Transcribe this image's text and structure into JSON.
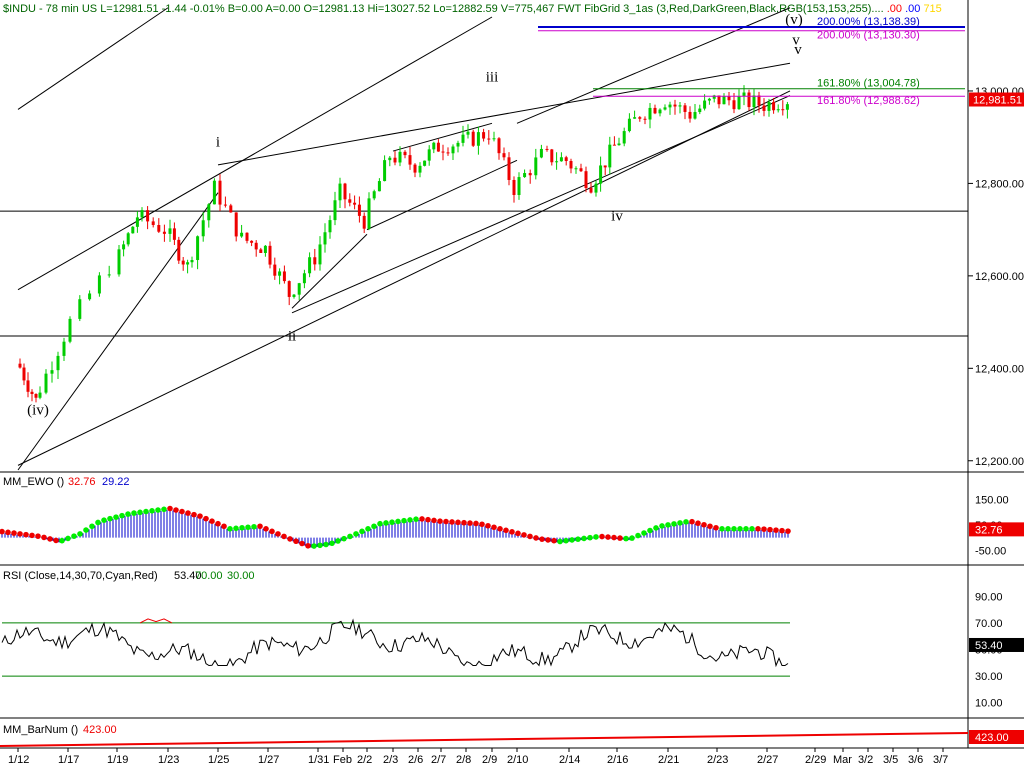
{
  "window": {
    "header_segments": [
      {
        "text": "$INDU - 78 min  US  L=12981.51  -1.44  -0.01%  B=0.00  A=0.00  O=12981.13  Hi=13027.52  Lo=12882.59  V=775,467   FWT FibGrid 3_1as (3,Red,DarkGreen,Black,RGB(153,153,255)....",
        "color": "#006400"
      },
      {
        "text": ".00",
        "color": "#ff0000"
      },
      {
        "text": ".00",
        "color": "#0000ff"
      },
      {
        "text": "715",
        "color": "#ffd700"
      }
    ]
  },
  "colors": {
    "up_candle": "#00cc00",
    "down_candle": "#ee0000",
    "ewo_histogram": "#0000cc",
    "ewo_dot_up": "#00ee00",
    "ewo_dot_down": "#ee0000",
    "rsi_line": "#000000",
    "rsi_bounds": "#008000",
    "fib_green": "#008000",
    "fib_magenta": "#cc00cc",
    "fib_blue": "#0000cc",
    "price_tag_bg": "#ee0000"
  },
  "price_panel": {
    "last_price_label": "12,981.51",
    "y_axis_ticks": [
      "13,000.00",
      "12,800.00",
      "12,600.00",
      "12,400.00",
      "12,200.00"
    ],
    "fib_labels": [
      {
        "text": "200.00% (13,138.39)",
        "color": "#0000cc"
      },
      {
        "text": "200.00% (13,130.30)",
        "color": "#cc00cc"
      },
      {
        "text": "161.80% (13,004.78)",
        "color": "#008000"
      },
      {
        "text": "161.80% (12,988.62)",
        "color": "#cc00cc"
      }
    ],
    "wave_labels": [
      "(iv)",
      "i",
      "ii",
      "iii",
      "iv",
      "v",
      "(v)",
      "v"
    ]
  },
  "ewo_panel": {
    "label": "MM_EWO ()",
    "value1": "32.76",
    "value2": "29.22",
    "y_axis_ticks": [
      "150.00",
      "50.00",
      "-50.00"
    ],
    "value_tag": "32.76"
  },
  "rsi_panel": {
    "label": "RSI (Close,14,30,70,Cyan,Red)",
    "value": "53.40",
    "upper": "70.00",
    "lower": "30.00",
    "y_axis_ticks": [
      "90.00",
      "70.00",
      "50.00",
      "30.00",
      "10.00"
    ],
    "value_tag": "53.40"
  },
  "barnum_panel": {
    "label": "MM_BarNum ()",
    "value": "423.00",
    "value_tag": "423.00"
  },
  "x_axis": {
    "labels": [
      "1/12",
      "1/17",
      "1/19",
      "1/23",
      "1/25",
      "1/27",
      "1/31",
      "Feb",
      "2/2",
      "2/3",
      "2/6",
      "2/7",
      "2/8",
      "2/9",
      "2/10",
      "2/14",
      "2/16",
      "2/21",
      "2/23",
      "2/27",
      "2/29",
      "Mar",
      "3/2",
      "3/5",
      "3/6",
      "3/7"
    ]
  },
  "chart_data": {
    "type": "candlestick",
    "symbol": "$INDU",
    "interval": "78 min",
    "bars": 423,
    "price_ylim": [
      12180,
      13160
    ],
    "price_path_approx": [
      {
        "date": "1/12",
        "close": 12420
      },
      {
        "date": "1/13",
        "close": 12330
      },
      {
        "date": "1/17",
        "close": 12470
      },
      {
        "date": "1/19",
        "close": 12620
      },
      {
        "date": "1/20",
        "close": 12730
      },
      {
        "date": "1/23",
        "close": 12700
      },
      {
        "date": "1/24",
        "close": 12620
      },
      {
        "date": "1/25",
        "close": 12790
      },
      {
        "date": "1/26",
        "close": 12680
      },
      {
        "date": "1/27",
        "close": 12660
      },
      {
        "date": "1/30",
        "close": 12560
      },
      {
        "date": "1/31",
        "close": 12640
      },
      {
        "date": "2/1",
        "close": 12780
      },
      {
        "date": "2/2",
        "close": 12720
      },
      {
        "date": "2/3",
        "close": 12860
      },
      {
        "date": "2/6",
        "close": 12840
      },
      {
        "date": "2/7",
        "close": 12880
      },
      {
        "date": "2/8",
        "close": 12890
      },
      {
        "date": "2/9",
        "close": 12910
      },
      {
        "date": "2/10",
        "close": 12790
      },
      {
        "date": "2/13",
        "close": 12860
      },
      {
        "date": "2/14",
        "close": 12850
      },
      {
        "date": "2/15",
        "close": 12800
      },
      {
        "date": "2/16",
        "close": 12880
      },
      {
        "date": "2/17",
        "close": 12950
      },
      {
        "date": "2/21",
        "close": 12980
      },
      {
        "date": "2/22",
        "close": 12950
      },
      {
        "date": "2/23",
        "close": 12980
      },
      {
        "date": "2/24",
        "close": 12980
      },
      {
        "date": "2/27",
        "close": 12970
      },
      {
        "date": "2/28",
        "close": 12981.51
      }
    ],
    "last": 12981.51,
    "open": 12981.13,
    "high": 13027.52,
    "low": 12882.59,
    "volume": 775467,
    "change": -1.44,
    "change_pct": -0.01,
    "horizontal_levels": [
      12740,
      12470
    ],
    "fib_levels": [
      {
        "pct": "200.00%",
        "value": 13138.39,
        "color": "#0000cc"
      },
      {
        "pct": "200.00%",
        "value": 13130.3,
        "color": "#cc00cc"
      },
      {
        "pct": "161.80%",
        "value": 13004.78,
        "color": "#008000"
      },
      {
        "pct": "161.80%",
        "value": 12988.62,
        "color": "#cc00cc"
      }
    ],
    "wave_labels": [
      {
        "label": "(iv)",
        "date": "1/13",
        "price": 12300
      },
      {
        "label": "i",
        "date": "1/25",
        "price": 12880
      },
      {
        "label": "ii",
        "date": "1/30",
        "price": 12460
      },
      {
        "label": "iii",
        "date": "2/9",
        "price": 13020
      },
      {
        "label": "iv",
        "date": "2/16",
        "price": 12720
      },
      {
        "label": "(v)",
        "date": "2/28",
        "price": 13100
      },
      {
        "label": "v",
        "date": "2/28",
        "price": 13145
      },
      {
        "label": "v",
        "date": "2/28",
        "price": 13080
      }
    ],
    "ewo": {
      "value": 32.76,
      "signal": 29.22,
      "ylim": [
        -100,
        200
      ],
      "ticks": [
        150,
        50,
        -50
      ]
    },
    "rsi": {
      "value": 53.4,
      "upper": 70,
      "lower": 30,
      "ylim": [
        0,
        100
      ],
      "ticks": [
        90,
        70,
        50,
        30,
        10
      ]
    },
    "barnum": {
      "value": 423
    }
  }
}
